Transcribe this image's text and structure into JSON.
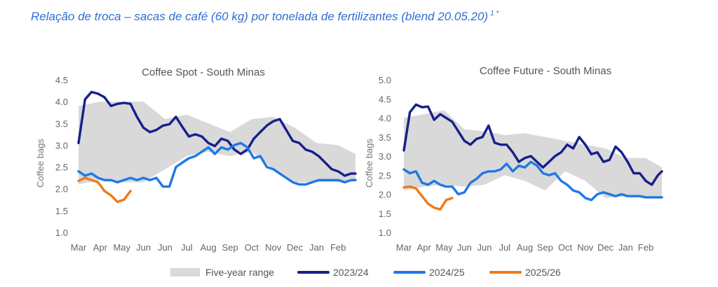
{
  "page": {
    "title": "Relação de troca – sacas de café (60 kg) por tonelada de fertilizantes (blend 20.05.20)",
    "title_sup": "1 *"
  },
  "legend": [
    {
      "label": "Five-year range",
      "color": "#d9d9d9",
      "kind": "band"
    },
    {
      "label": "2023/24",
      "color": "#16208a",
      "kind": "line"
    },
    {
      "label": "2024/25",
      "color": "#1f78e6",
      "kind": "line"
    },
    {
      "label": "2025/26",
      "color": "#f07a1a",
      "kind": "line"
    }
  ],
  "chart_data": [
    {
      "type": "line",
      "title": "Coffee Spot - South Minas",
      "ylabel": "Coffee bags",
      "xlabel": "",
      "ylim": [
        1.0,
        4.5
      ],
      "yticks": [
        "1.0",
        "1.5",
        "2.0",
        "2.5",
        "3.0",
        "3.5",
        "4.0",
        "4.5"
      ],
      "categories": [
        "Mar",
        "Apr",
        "May",
        "Jun",
        "Jun",
        "Jul",
        "Aug",
        "Sep",
        "Oct",
        "Nov",
        "Dec",
        "Jan",
        "Feb"
      ],
      "x_range": [
        0,
        12.8
      ],
      "grid": false,
      "range_band": {
        "name": "Five-year range",
        "x": [
          0,
          1,
          2,
          3,
          4,
          5,
          6,
          7,
          8,
          9,
          10,
          11,
          12,
          12.8
        ],
        "lower": [
          2.1,
          2.2,
          2.15,
          2.15,
          2.45,
          2.75,
          2.85,
          2.75,
          2.85,
          2.45,
          2.15,
          2.15,
          2.15,
          2.2
        ],
        "upper": [
          3.9,
          4.0,
          4.0,
          4.0,
          3.6,
          3.7,
          3.5,
          3.3,
          3.6,
          3.65,
          3.4,
          3.05,
          3.0,
          2.8
        ]
      },
      "series": [
        {
          "name": "2023/24",
          "color": "#16208a",
          "x": [
            0,
            0.3,
            0.6,
            0.9,
            1.2,
            1.5,
            1.8,
            2.1,
            2.4,
            2.7,
            3.0,
            3.3,
            3.6,
            3.9,
            4.2,
            4.5,
            4.8,
            5.1,
            5.4,
            5.7,
            6.0,
            6.3,
            6.6,
            6.9,
            7.2,
            7.5,
            7.8,
            8.1,
            8.4,
            8.7,
            9.0,
            9.3,
            9.6,
            9.9,
            10.2,
            10.5,
            10.8,
            11.1,
            11.4,
            11.7,
            12.0,
            12.3,
            12.6,
            12.8
          ],
          "y": [
            3.05,
            4.05,
            4.22,
            4.18,
            4.1,
            3.9,
            3.95,
            3.97,
            3.95,
            3.65,
            3.4,
            3.3,
            3.35,
            3.45,
            3.48,
            3.65,
            3.42,
            3.2,
            3.25,
            3.2,
            3.05,
            2.98,
            3.15,
            3.1,
            2.9,
            2.8,
            2.9,
            3.15,
            3.3,
            3.45,
            3.55,
            3.6,
            3.35,
            3.1,
            3.05,
            2.9,
            2.85,
            2.75,
            2.6,
            2.45,
            2.4,
            2.3,
            2.35,
            2.35
          ]
        },
        {
          "name": "2024/25",
          "color": "#1f78e6",
          "x": [
            0,
            0.3,
            0.6,
            0.9,
            1.2,
            1.5,
            1.8,
            2.1,
            2.4,
            2.7,
            3.0,
            3.3,
            3.6,
            3.9,
            4.2,
            4.5,
            4.8,
            5.1,
            5.4,
            5.7,
            6.0,
            6.3,
            6.6,
            6.9,
            7.2,
            7.5,
            7.8,
            8.1,
            8.4,
            8.7,
            9.0,
            9.3,
            9.6,
            9.9,
            10.2,
            10.5,
            10.8,
            11.1,
            11.4,
            11.7,
            12.0,
            12.3,
            12.6,
            12.8
          ],
          "y": [
            2.4,
            2.3,
            2.35,
            2.25,
            2.2,
            2.2,
            2.15,
            2.2,
            2.25,
            2.2,
            2.25,
            2.2,
            2.25,
            2.05,
            2.05,
            2.5,
            2.6,
            2.7,
            2.75,
            2.85,
            2.95,
            2.8,
            2.95,
            2.9,
            3.0,
            3.05,
            2.95,
            2.7,
            2.75,
            2.5,
            2.45,
            2.35,
            2.25,
            2.15,
            2.1,
            2.1,
            2.15,
            2.2,
            2.2,
            2.2,
            2.2,
            2.15,
            2.2,
            2.2
          ]
        },
        {
          "name": "2025/26",
          "color": "#f07a1a",
          "x": [
            0,
            0.3,
            0.6,
            0.9,
            1.2,
            1.5,
            1.8,
            2.1,
            2.4
          ],
          "y": [
            2.18,
            2.25,
            2.2,
            2.15,
            1.95,
            1.85,
            1.7,
            1.75,
            1.95
          ]
        }
      ]
    },
    {
      "type": "line",
      "title": "Coffee Future  - South Minas",
      "ylabel": "Coffee bags",
      "xlabel": "",
      "ylim": [
        1.0,
        5.0
      ],
      "yticks": [
        "1.0",
        "1.5",
        "2.0",
        "2.5",
        "3.0",
        "3.5",
        "4.0",
        "4.5",
        "5.0"
      ],
      "categories": [
        "Mar",
        "Apr",
        "May",
        "Jun",
        "Jun",
        "Jul",
        "Aug",
        "Sep",
        "Oct",
        "Nov",
        "Dec",
        "Jan",
        "Feb"
      ],
      "x_range": [
        0,
        12.8
      ],
      "grid": false,
      "range_band": {
        "name": "Five-year range",
        "x": [
          0,
          1,
          2,
          3,
          4,
          5,
          6,
          7,
          8,
          9,
          10,
          11,
          12,
          12.8
        ],
        "lower": [
          2.1,
          2.2,
          2.25,
          2.2,
          2.25,
          2.5,
          2.35,
          2.1,
          2.6,
          2.35,
          1.9,
          1.95,
          1.95,
          1.9
        ],
        "upper": [
          4.0,
          4.1,
          4.2,
          3.7,
          3.65,
          3.55,
          3.6,
          3.5,
          3.4,
          3.3,
          3.2,
          2.95,
          2.95,
          2.7
        ]
      },
      "series": [
        {
          "name": "2023/24",
          "color": "#16208a",
          "x": [
            0,
            0.3,
            0.6,
            0.9,
            1.2,
            1.5,
            1.8,
            2.1,
            2.4,
            2.7,
            3.0,
            3.3,
            3.6,
            3.9,
            4.2,
            4.5,
            4.8,
            5.1,
            5.4,
            5.7,
            6.0,
            6.3,
            6.6,
            6.9,
            7.2,
            7.5,
            7.8,
            8.1,
            8.4,
            8.7,
            9.0,
            9.3,
            9.6,
            9.9,
            10.2,
            10.5,
            10.8,
            11.1,
            11.4,
            11.7,
            12.0,
            12.3,
            12.6,
            12.8
          ],
          "y": [
            3.15,
            4.15,
            4.35,
            4.28,
            4.3,
            3.95,
            4.1,
            4.0,
            3.9,
            3.65,
            3.4,
            3.3,
            3.45,
            3.5,
            3.8,
            3.35,
            3.3,
            3.3,
            3.1,
            2.85,
            2.95,
            3.0,
            2.85,
            2.7,
            2.85,
            3.0,
            3.1,
            3.3,
            3.2,
            3.5,
            3.3,
            3.05,
            3.1,
            2.85,
            2.9,
            3.25,
            3.1,
            2.85,
            2.55,
            2.55,
            2.35,
            2.25,
            2.5,
            2.6
          ]
        },
        {
          "name": "2024/25",
          "color": "#1f78e6",
          "x": [
            0,
            0.3,
            0.6,
            0.9,
            1.2,
            1.5,
            1.8,
            2.1,
            2.4,
            2.7,
            3.0,
            3.3,
            3.6,
            3.9,
            4.2,
            4.5,
            4.8,
            5.1,
            5.4,
            5.7,
            6.0,
            6.3,
            6.6,
            6.9,
            7.2,
            7.5,
            7.8,
            8.1,
            8.4,
            8.7,
            9.0,
            9.3,
            9.6,
            9.9,
            10.2,
            10.5,
            10.8,
            11.1,
            11.4,
            11.7,
            12.0,
            12.3,
            12.6,
            12.8
          ],
          "y": [
            2.65,
            2.55,
            2.6,
            2.3,
            2.25,
            2.35,
            2.25,
            2.2,
            2.2,
            2.0,
            2.05,
            2.3,
            2.4,
            2.55,
            2.6,
            2.6,
            2.65,
            2.8,
            2.6,
            2.75,
            2.7,
            2.85,
            2.75,
            2.55,
            2.5,
            2.55,
            2.35,
            2.25,
            2.1,
            2.05,
            1.9,
            1.85,
            2.0,
            2.05,
            2.0,
            1.95,
            2.0,
            1.95,
            1.95,
            1.95,
            1.92,
            1.92,
            1.92,
            1.92
          ]
        },
        {
          "name": "2025/26",
          "color": "#f07a1a",
          "x": [
            0,
            0.3,
            0.6,
            0.9,
            1.2,
            1.5,
            1.8,
            2.1,
            2.4
          ],
          "y": [
            2.18,
            2.2,
            2.15,
            1.95,
            1.75,
            1.65,
            1.6,
            1.85,
            1.9
          ]
        }
      ]
    }
  ]
}
